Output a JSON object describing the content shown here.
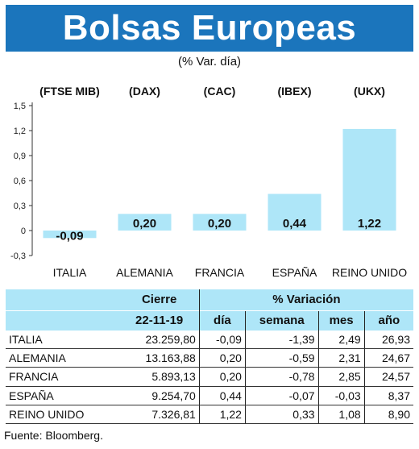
{
  "header": {
    "title": "Bolsas Europeas",
    "subtitle": "(% Var. día)"
  },
  "chart_data": {
    "type": "bar",
    "categories": [
      "ITALIA",
      "ALEMANIA",
      "FRANCIA",
      "ESPAÑA",
      "REINO UNIDO"
    ],
    "indices": [
      "(FTSE MIB)",
      "(DAX)",
      "(CAC)",
      "(IBEX)",
      "(UKX)"
    ],
    "values": [
      -0.09,
      0.2,
      0.2,
      0.44,
      1.22
    ],
    "value_labels": [
      "-0,09",
      "0,20",
      "0,20",
      "0,44",
      "1,22"
    ],
    "yticks": [
      "-0,3",
      "0",
      "0,3",
      "0,6",
      "0,9",
      "1,2",
      "1,5"
    ],
    "ytick_values": [
      -0.3,
      0,
      0.3,
      0.6,
      0.9,
      1.2,
      1.5
    ],
    "ylim": [
      -0.3,
      1.5
    ],
    "bar_color": "#aee6f8"
  },
  "table": {
    "group_cierre": "Cierre",
    "group_variacion": "% Variación",
    "date": "22-11-19",
    "col_dia": "día",
    "col_semana": "semana",
    "col_mes": "mes",
    "col_ano": "año",
    "rows": [
      {
        "name": "ITALIA",
        "cierre": "23.259,80",
        "dia": "-0,09",
        "semana": "-1,39",
        "mes": "2,49",
        "ano": "26,93"
      },
      {
        "name": "ALEMANIA",
        "cierre": "13.163,88",
        "dia": "0,20",
        "semana": "-0,59",
        "mes": "2,31",
        "ano": "24,67"
      },
      {
        "name": "FRANCIA",
        "cierre": "5.893,13",
        "dia": "0,20",
        "semana": "-0,78",
        "mes": "2,85",
        "ano": "24,57"
      },
      {
        "name": "ESPAÑA",
        "cierre": "9.254,70",
        "dia": "0,44",
        "semana": "-0,07",
        "mes": "-0,03",
        "ano": "8,37"
      },
      {
        "name": "REINO UNIDO",
        "cierre": "7.326,81",
        "dia": "1,22",
        "semana": "0,33",
        "mes": "1,08",
        "ano": "8,90"
      }
    ]
  },
  "footer": {
    "source": "Fuente: Bloomberg."
  },
  "colors": {
    "banner": "#1b75bc",
    "accent": "#aee6f8"
  }
}
